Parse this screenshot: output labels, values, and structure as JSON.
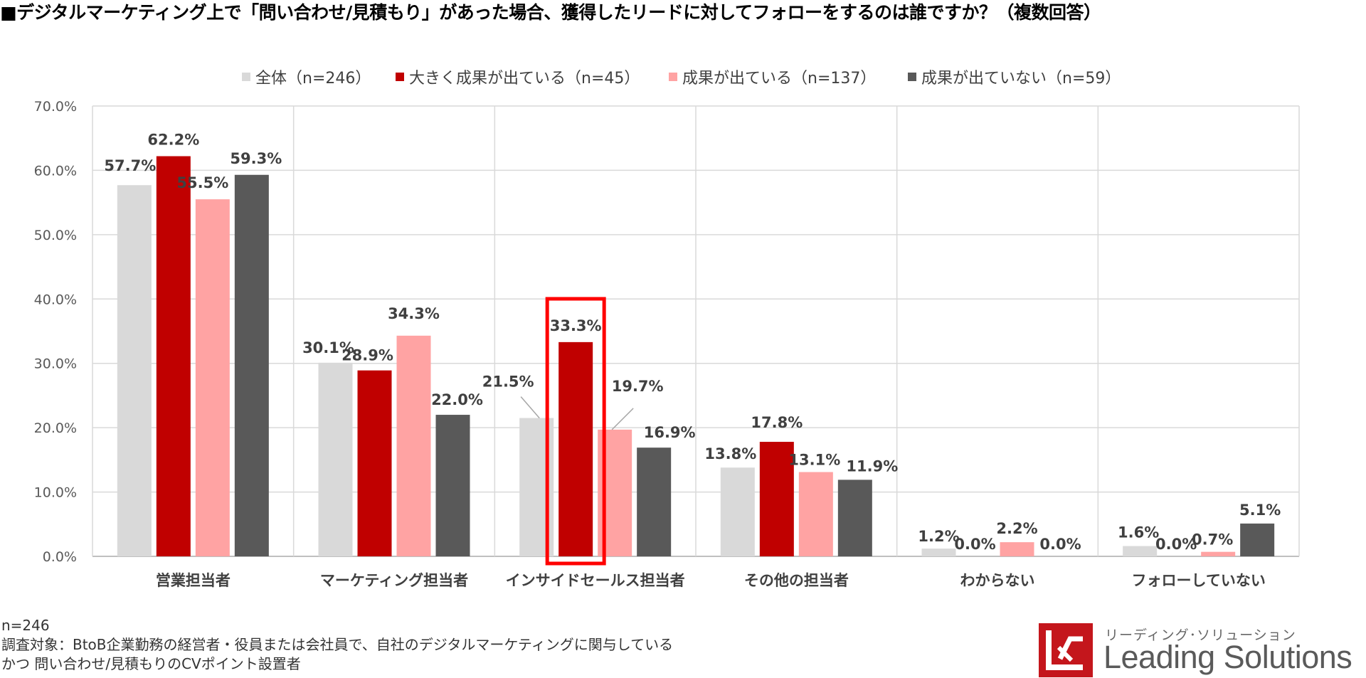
{
  "title": "■デジタルマーケティング上で「問い合わせ/見積もり」があった場合、獲得したリードに対してフォローをするのは誰ですか？（複数回答）",
  "chart_data": {
    "type": "bar",
    "categories": [
      "営業担当者",
      "マーケティング担当者",
      "インサイドセールス担当者",
      "その他の担当者",
      "わからない",
      "フォローしていない"
    ],
    "series": [
      {
        "name": "全体（n=246）",
        "color": "#d9d9d9",
        "values": [
          57.7,
          30.1,
          21.5,
          13.8,
          1.2,
          1.6
        ],
        "labels": [
          "57.7%",
          "30.1%",
          "21.5%",
          "13.8%",
          "1.2%",
          "1.6%"
        ]
      },
      {
        "name": "大きく成果が出ている（n=45）",
        "color": "#c00000",
        "values": [
          62.2,
          28.9,
          33.3,
          17.8,
          0.0,
          0.0
        ],
        "labels": [
          "62.2%",
          "28.9%",
          "33.3%",
          "17.8%",
          "0.0%",
          "0.0%"
        ]
      },
      {
        "name": "成果が出ている（n=137）",
        "color": "#ffa3a3",
        "values": [
          55.5,
          34.3,
          19.7,
          13.1,
          2.2,
          0.7
        ],
        "labels": [
          "55.5%",
          "34.3%",
          "19.7%",
          "13.1%",
          "2.2%",
          "0.7%"
        ]
      },
      {
        "name": "成果が出ていない（n=59）",
        "color": "#595959",
        "values": [
          59.3,
          22.0,
          16.9,
          11.9,
          0.0,
          5.1
        ],
        "labels": [
          "59.3%",
          "22.0%",
          "16.9%",
          "11.9%",
          "0.0%",
          "5.1%"
        ]
      }
    ],
    "yticks": [
      "0.0%",
      "10.0%",
      "20.0%",
      "30.0%",
      "40.0%",
      "50.0%",
      "60.0%",
      "70.0%"
    ],
    "ylim": [
      0,
      70
    ],
    "grid": true,
    "legend_position": "top",
    "highlight": {
      "category": "インサイドセールス担当者",
      "series": "大きく成果が出ている（n=45）",
      "color": "#ff0000"
    }
  },
  "footnote": {
    "n": "n=246",
    "line1": "調査対象：BtoB企業勤務の経営者・役員または会社員で、自社のデジタルマーケティングに関与している",
    "line2": "かつ 問い合わせ/見積もりのCVポイント設置者"
  },
  "logo": {
    "subtitle": "リーディング･ソリューション",
    "name": "Leading Solutions",
    "color": "#c4161c"
  }
}
